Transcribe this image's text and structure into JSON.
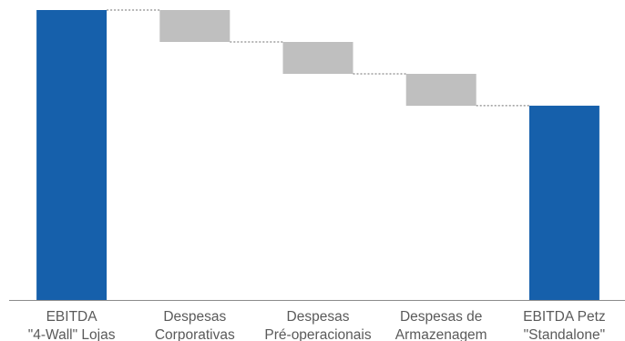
{
  "chart_data": {
    "type": "bar",
    "subtype": "waterfall",
    "title": "",
    "xlabel": "",
    "ylabel": "",
    "ylim": [
      0,
      100
    ],
    "grid": false,
    "legend": "none",
    "categories": [
      [
        "EBITDA",
        "\"4-Wall\" Lojas"
      ],
      [
        "Despesas",
        "Corporativas"
      ],
      [
        "Despesas",
        "Pré-operacionais"
      ],
      [
        "Despesas de",
        "Armazenagem"
      ],
      [
        "EBITDA Petz",
        "\"Standalone\""
      ]
    ],
    "bars": [
      {
        "kind": "total",
        "start": 0,
        "end": 100
      },
      {
        "kind": "decrease",
        "start": 100,
        "end": 89
      },
      {
        "kind": "decrease",
        "start": 89,
        "end": 78
      },
      {
        "kind": "decrease",
        "start": 78,
        "end": 67
      },
      {
        "kind": "total",
        "start": 0,
        "end": 67
      }
    ],
    "colors": {
      "total": "#1660ab",
      "decrease": "#bfbfbf",
      "connector": "#6e6e6e",
      "axis": "#8c8c8c",
      "label": "#5a5a5a"
    }
  }
}
